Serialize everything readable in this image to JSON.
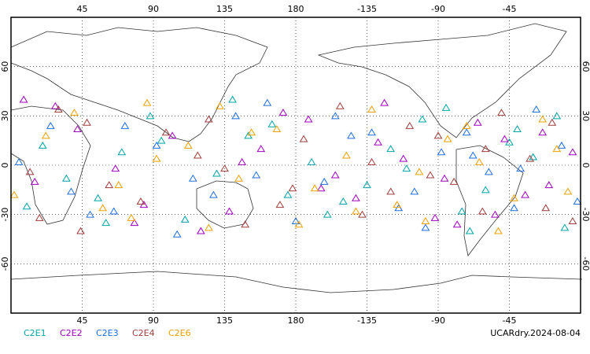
{
  "chart_data": {
    "type": "scatter",
    "label": "UCARdry.2024-08-04",
    "xlim": [
      0,
      360
    ],
    "ylim": [
      -90,
      90
    ],
    "xticks": [
      45,
      90,
      135,
      180,
      {
        "value": 225,
        "label": "-135"
      },
      {
        "value": 270,
        "label": "-90"
      },
      {
        "value": 315,
        "label": "-45"
      }
    ],
    "yticks": [
      -60,
      -30,
      0,
      30,
      60
    ],
    "grid": true,
    "series": [
      {
        "name": "C2E1",
        "color": "#00a5a5",
        "x": [
          20,
          55,
          88,
          130,
          165,
          200,
          240,
          275,
          300,
          330,
          350,
          10,
          70,
          110,
          150,
          190,
          225,
          260,
          290,
          320,
          35,
          95,
          140,
          210,
          250,
          285,
          315,
          345,
          60,
          175
        ],
        "y": [
          12,
          -20,
          30,
          -5,
          25,
          -30,
          10,
          35,
          -15,
          5,
          -38,
          -25,
          8,
          -33,
          18,
          2,
          -12,
          28,
          -40,
          22,
          -8,
          15,
          40,
          -22,
          -2,
          -28,
          14,
          30,
          -35,
          -18
        ]
      },
      {
        "name": "C2E2",
        "color": "#a000c0",
        "x": [
          15,
          42,
          78,
          102,
          138,
          172,
          205,
          232,
          268,
          295,
          325,
          355,
          28,
          66,
          120,
          158,
          188,
          218,
          248,
          282,
          312,
          340,
          8,
          84,
          146,
          196,
          236,
          274,
          306,
          336
        ],
        "y": [
          -10,
          22,
          -35,
          18,
          -28,
          32,
          -6,
          14,
          -32,
          26,
          -18,
          8,
          36,
          -2,
          -40,
          10,
          28,
          -20,
          4,
          -36,
          16,
          -12,
          40,
          -24,
          2,
          -14,
          38,
          -8,
          -30,
          20
        ]
      },
      {
        "name": "C2E3",
        "color": "#1e6ee6",
        "x": [
          5,
          38,
          72,
          115,
          142,
          180,
          215,
          245,
          272,
          302,
          332,
          358,
          50,
          92,
          128,
          162,
          198,
          228,
          262,
          292,
          318,
          348,
          25,
          105,
          155,
          205,
          255,
          288,
          322,
          65
        ],
        "y": [
          2,
          -16,
          24,
          -8,
          30,
          -34,
          18,
          -26,
          8,
          -4,
          34,
          -22,
          -30,
          12,
          -18,
          38,
          -10,
          20,
          -38,
          6,
          -26,
          12,
          24,
          -42,
          -6,
          30,
          -16,
          20,
          -2,
          -28
        ]
      },
      {
        "name": "C2E4",
        "color": "#a03c3c",
        "x": [
          12,
          48,
          82,
          118,
          148,
          185,
          222,
          252,
          280,
          310,
          338,
          30,
          62,
          98,
          135,
          170,
          208,
          240,
          270,
          298,
          328,
          355,
          44,
          125,
          178,
          228,
          265,
          300,
          342,
          18
        ],
        "y": [
          -4,
          26,
          -22,
          6,
          -36,
          16,
          -30,
          24,
          -10,
          32,
          -26,
          34,
          -12,
          20,
          -2,
          -24,
          36,
          -16,
          18,
          -28,
          4,
          -34,
          -40,
          28,
          -14,
          2,
          -6,
          10,
          26,
          -32
        ]
      },
      {
        "name": "C2E6",
        "color": "#f0a000",
        "x": [
          22,
          58,
          92,
          125,
          152,
          192,
          228,
          258,
          288,
          318,
          345,
          2,
          40,
          76,
          112,
          144,
          182,
          212,
          244,
          276,
          308,
          336,
          68,
          132,
          168,
          218,
          262,
          296,
          352,
          86
        ],
        "y": [
          18,
          -26,
          4,
          -38,
          20,
          -14,
          34,
          -4,
          24,
          -20,
          10,
          -18,
          32,
          -32,
          12,
          -8,
          -36,
          6,
          -24,
          16,
          -40,
          28,
          -12,
          36,
          22,
          -28,
          -34,
          2,
          -16,
          38
        ]
      }
    ]
  }
}
